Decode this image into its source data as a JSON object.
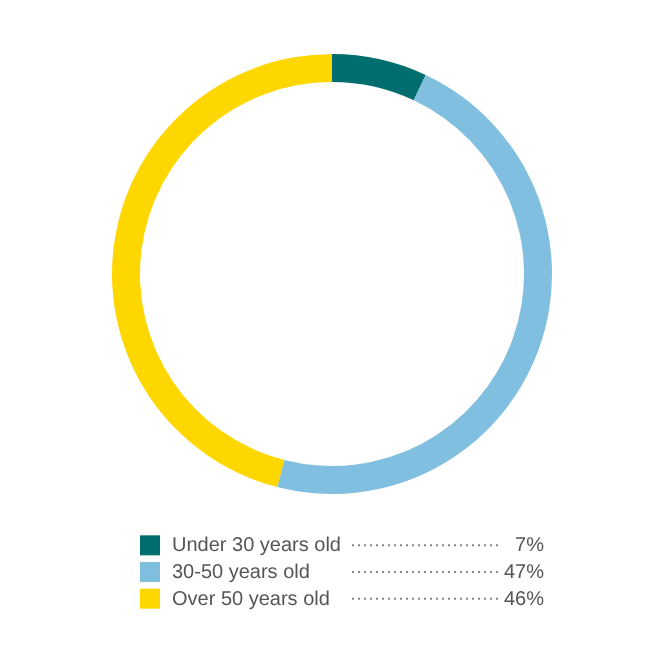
{
  "chart_data": {
    "type": "donut",
    "categories": [
      "Under 30 years old",
      "30-50 years old",
      "Over 50 years old"
    ],
    "values": [
      7,
      47,
      46
    ],
    "colors": [
      "#006e6e",
      "#80bfdf",
      "#ffd700"
    ],
    "value_labels": [
      "7%",
      "47%",
      "46%"
    ],
    "legend": "bottom"
  }
}
